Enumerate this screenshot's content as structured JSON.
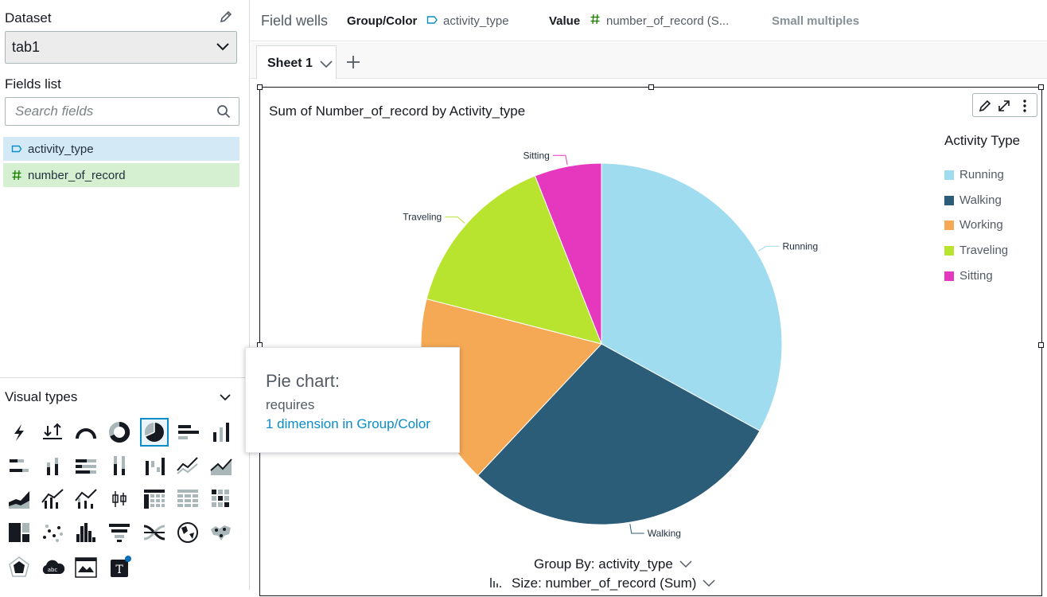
{
  "left_panel": {
    "dataset_label": "Dataset",
    "dataset_value": "tab1",
    "fields_label": "Fields list",
    "search_placeholder": "Search fields",
    "fields": [
      {
        "name": "activity_type",
        "kind": "dimension",
        "icon": "dimension-tag-icon",
        "color": "#d3eaf6"
      },
      {
        "name": "number_of_record",
        "kind": "measure",
        "icon": "hash-icon",
        "color": "#d5f0d1"
      }
    ],
    "visual_types_label": "Visual types",
    "visual_types": [
      "autograph",
      "kpi",
      "gauge",
      "donut",
      "pie",
      "horizontal-bar",
      "vertical-bar",
      "horizontal-stacked-bar",
      "vertical-stacked-bar",
      "horizontal-stacked-100-bar",
      "vertical-stacked-100-bar",
      "waterfall",
      "line",
      "area-line",
      "stacked-area",
      "combo-bar-line",
      "combo-stacked-line",
      "box-plot",
      "pivot-table",
      "table",
      "heat-map",
      "tree-map",
      "scatter",
      "histogram",
      "funnel",
      "sankey",
      "filled-map",
      "points-map",
      "radar",
      "word-cloud",
      "insight",
      "narrative"
    ],
    "selected_visual_type": "pie"
  },
  "topbar": {
    "field_wells": "Field wells",
    "group_label": "Group/Color",
    "group_value": "activity_type",
    "value_label": "Value",
    "value_value": "number_of_record (S...",
    "small_multiples": "Small multiples"
  },
  "sheets": {
    "active": "Sheet 1"
  },
  "visual": {
    "title": "Sum of Number_of_record by Activity_type",
    "legend_title": "Activity Type",
    "group_by": "Group By: activity_type",
    "size_by": "Size: number_of_record (Sum)"
  },
  "tooltip": {
    "title": "Pie chart:",
    "requires": "requires",
    "link": "1 dimension in Group/Color"
  },
  "chart_data": {
    "type": "pie",
    "title": "Sum of Number_of_record by Activity_type",
    "legend_title": "Activity Type",
    "legend_position": "right",
    "categories": [
      "Running",
      "Walking",
      "Working",
      "Traveling",
      "Sitting"
    ],
    "values": [
      33,
      29,
      17,
      15,
      6
    ],
    "colors": [
      "#a0dcf0",
      "#2b5c78",
      "#f5a954",
      "#b8e32e",
      "#e637bf"
    ]
  }
}
